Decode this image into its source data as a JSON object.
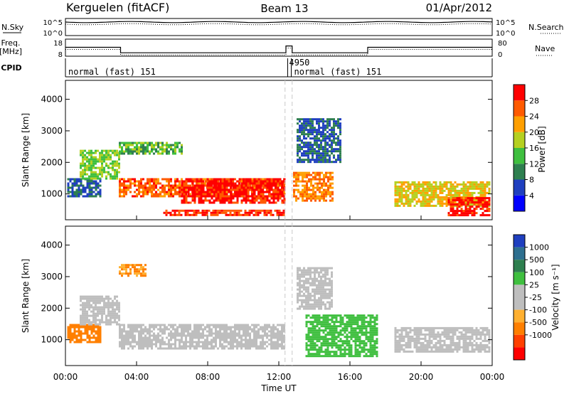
{
  "header": {
    "station": "Kerguelen (fitACF)",
    "beam": "Beam 13",
    "date": "01/Apr/2012"
  },
  "summary": {
    "nsky_label": "N.Sky",
    "nsearch_label": "N.Search",
    "nsky_ticks": [
      "10^5",
      "10^0"
    ],
    "nsearch_ticks": [
      "10^5",
      "10^0"
    ],
    "freq_label": "Freq.",
    "freq_unit": "[MHz]",
    "freq_ticks": [
      "18",
      "8"
    ],
    "nave_label": "Nave",
    "nave_ticks": [
      "80",
      "0"
    ],
    "cpid_label": "CPID",
    "cpid_segments": [
      {
        "text": "normal (fast) 151",
        "start_h": 0,
        "end_h": 12.5
      },
      {
        "text": "4950",
        "start_h": 12.5,
        "end_h": 12.7
      },
      {
        "text": "normal (fast) 151",
        "start_h": 12.7,
        "end_h": 24
      }
    ],
    "freq_steps": [
      {
        "start_h": 0,
        "end_h": 3.1,
        "mhz": 13.2
      },
      {
        "start_h": 3.1,
        "end_h": 12.4,
        "mhz": 10.0
      },
      {
        "start_h": 12.4,
        "end_h": 12.75,
        "mhz": 14.0
      },
      {
        "start_h": 12.75,
        "end_h": 17.0,
        "mhz": 10.0
      },
      {
        "start_h": 17.0,
        "end_h": 24,
        "mhz": 13.2
      }
    ]
  },
  "colorbar_power": {
    "label": "Power [dB]",
    "ticks": [
      "28",
      "24",
      "20",
      "16",
      "12",
      "8",
      "4"
    ],
    "colors": [
      "#0000ff",
      "#1f3fbf",
      "#2e7f4f",
      "#3fbf3f",
      "#b5d020",
      "#ff9f00",
      "#ff5a00",
      "#ff0000"
    ]
  },
  "colorbar_velocity": {
    "label": "Velocity [m s⁻¹]",
    "ticks": [
      "1000",
      "500",
      "100",
      "25",
      "-25",
      "-100",
      "-500",
      "-1000"
    ],
    "colors": [
      "#1f3fbf",
      "#2e6f8f",
      "#2e7f4f",
      "#3fbf3f",
      "#bebebe",
      "#bebebe",
      "#ffb030",
      "#ff7f00",
      "#ff4000",
      "#ff0000"
    ]
  },
  "chart_data": {
    "type": "heatmap",
    "title": "Kerguelen (fitACF) Beam 13 01/Apr/2012",
    "xlabel": "Time UT",
    "x_ticks": [
      "00:00",
      "04:00",
      "08:00",
      "12:00",
      "16:00",
      "20:00",
      "00:00"
    ],
    "xlim_hours": [
      0,
      24
    ],
    "ylabel": "Slant Range [km]",
    "y_ticks": [
      "1000",
      "2000",
      "3000",
      "4000"
    ],
    "ylim_km": [
      180,
      4600
    ],
    "panels": [
      {
        "quantity": "Power",
        "unit": "dB",
        "scale": [
          0,
          32
        ],
        "regions": [
          {
            "t0": 0.1,
            "t1": 2.0,
            "r0": 900,
            "r1": 1500,
            "value": 8
          },
          {
            "t0": 0.8,
            "t1": 3.0,
            "r0": 1500,
            "r1": 2400,
            "value": 16
          },
          {
            "t0": 3.0,
            "t1": 6.5,
            "r0": 2300,
            "r1": 2650,
            "value": 14
          },
          {
            "t0": 3.0,
            "t1": 12.3,
            "r0": 900,
            "r1": 1500,
            "value": 26
          },
          {
            "t0": 6.5,
            "t1": 12.3,
            "r0": 750,
            "r1": 1500,
            "value": 30
          },
          {
            "t0": 5.5,
            "t1": 12.3,
            "r0": 300,
            "r1": 500,
            "value": 28
          },
          {
            "t0": 12.8,
            "t1": 15.0,
            "r0": 800,
            "r1": 1700,
            "value": 24
          },
          {
            "t0": 13.0,
            "t1": 15.5,
            "r0": 2000,
            "r1": 3400,
            "value": 8
          },
          {
            "t0": 18.5,
            "t1": 23.9,
            "r0": 600,
            "r1": 1400,
            "value": 20
          },
          {
            "t0": 21.5,
            "t1": 23.9,
            "r0": 300,
            "r1": 900,
            "value": 30
          }
        ]
      },
      {
        "quantity": "Velocity",
        "unit": "m s-1",
        "scale": [
          -1000,
          1000
        ],
        "regions": [
          {
            "t0": 0.1,
            "t1": 2.0,
            "r0": 900,
            "r1": 1500,
            "value": -300
          },
          {
            "t0": 0.8,
            "t1": 3.0,
            "r0": 1500,
            "r1": 2400,
            "value": 0
          },
          {
            "t0": 3.0,
            "t1": 12.3,
            "r0": 750,
            "r1": 1500,
            "value": 0
          },
          {
            "t0": 3.0,
            "t1": 4.5,
            "r0": 3000,
            "r1": 3400,
            "value": -100
          },
          {
            "t0": 13.5,
            "t1": 17.5,
            "r0": 500,
            "r1": 1800,
            "value": 60
          },
          {
            "t0": 13.0,
            "t1": 15.0,
            "r0": 2000,
            "r1": 3300,
            "value": 0
          },
          {
            "t0": 18.5,
            "t1": 23.9,
            "r0": 600,
            "r1": 1400,
            "value": 0
          }
        ]
      }
    ],
    "data_gap_hours": [
      12.35,
      12.75
    ]
  }
}
